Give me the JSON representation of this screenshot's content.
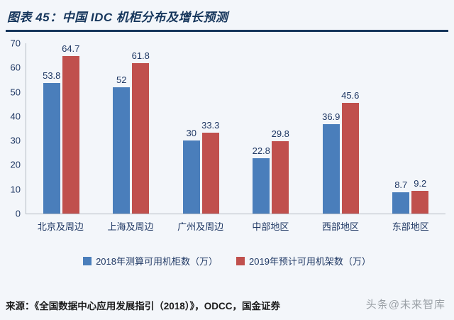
{
  "header": {
    "title": "图表 45：中国 IDC 机柜分布及增长预测"
  },
  "chart_data": {
    "type": "bar",
    "title": "中国 IDC 机柜分布及增长预测",
    "categories": [
      "北京及周边",
      "上海及周边",
      "广州及周边",
      "中部地区",
      "西部地区",
      "东部地区"
    ],
    "series": [
      {
        "name": "2018年测算可用机柜数（万）",
        "color": "#4a7ebb",
        "values": [
          53.8,
          52,
          30,
          22.8,
          36.9,
          8.7
        ]
      },
      {
        "name": "2019年预计可用机架数（万）",
        "color": "#c0504d",
        "values": [
          64.7,
          61.8,
          33.3,
          29.8,
          45.6,
          9.2
        ]
      }
    ],
    "xlabel": "",
    "ylabel": "",
    "ylim": [
      0,
      70
    ],
    "yticks": [
      0,
      10,
      20,
      30,
      40,
      50,
      60,
      70
    ],
    "grid": false,
    "legend_position": "bottom"
  },
  "footer": {
    "source": "来源：《全国数据中心应用发展指引（2018）》，ODCC，国金证券",
    "watermark": "头条@未来智库"
  },
  "colors": {
    "accent_navy": "#16365c",
    "bar_blue": "#4a7ebb",
    "bar_red": "#c0504d"
  }
}
